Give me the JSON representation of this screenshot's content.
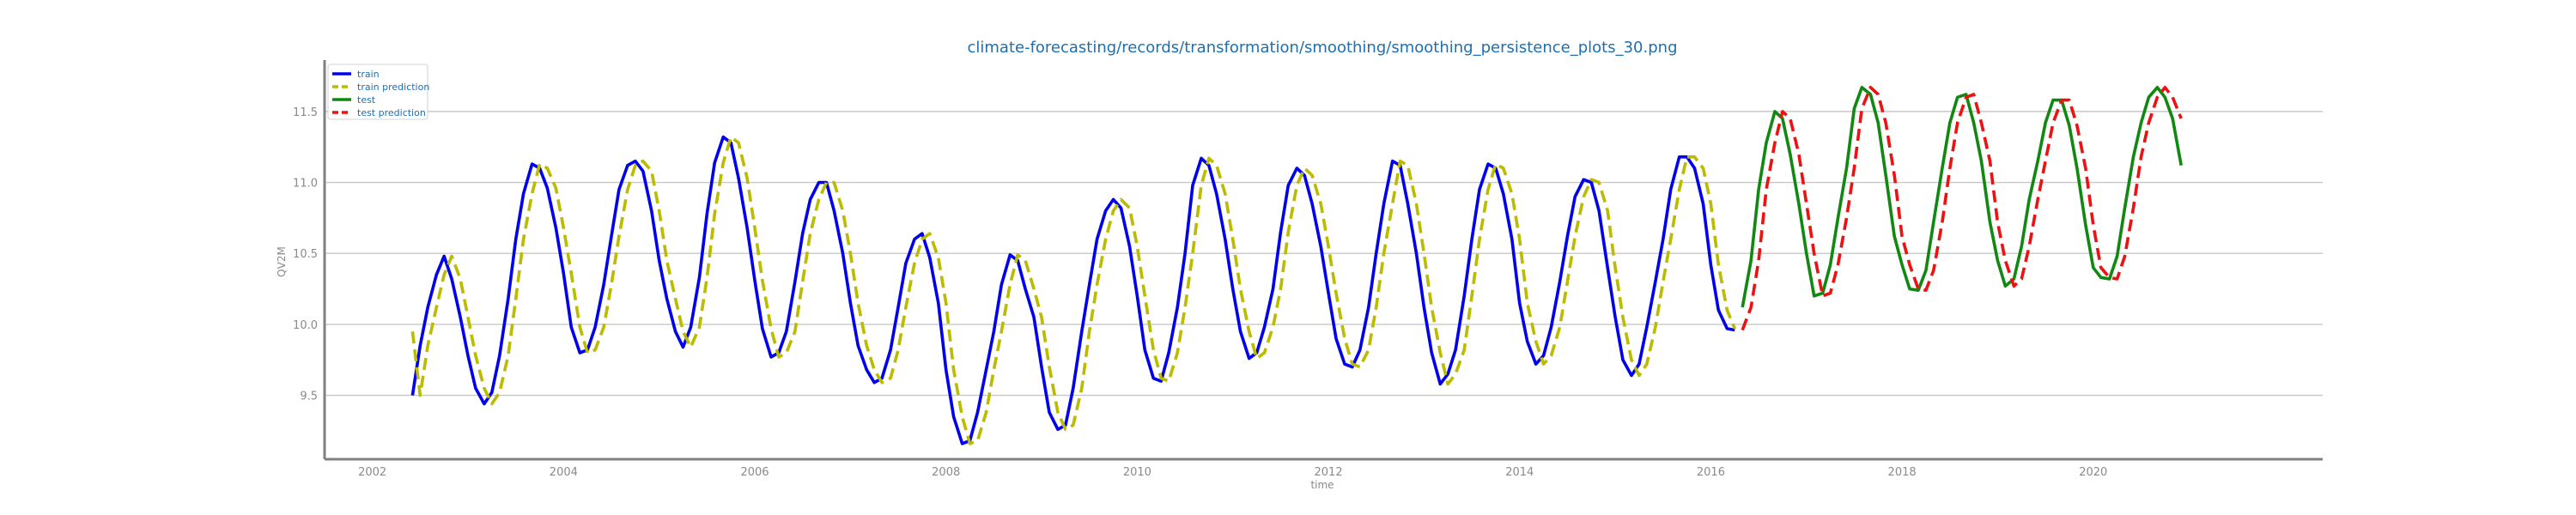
{
  "chart_data": {
    "type": "line",
    "title": "climate-forecasting/records/transformation/smoothing/smoothing_persistence_plots_30.png",
    "xlabel": "time",
    "ylabel": "QV2M",
    "xlim": [
      2001.5,
      2022.4
    ],
    "ylim": [
      9.05,
      11.85
    ],
    "xticks": [
      2002,
      2004,
      2006,
      2008,
      2010,
      2012,
      2014,
      2016,
      2018,
      2020
    ],
    "yticks": [
      9.5,
      10.0,
      10.5,
      11.0,
      11.5
    ],
    "grid": "horizontal",
    "legend_position": "top-left",
    "series": [
      {
        "name": "train",
        "color": "#0000ee",
        "style": "solid",
        "x": [
          2002.42,
          2002.5,
          2002.58,
          2002.67,
          2002.75,
          2002.83,
          2002.92,
          2003.0,
          2003.08,
          2003.17,
          2003.25,
          2003.33,
          2003.42,
          2003.5,
          2003.58,
          2003.67,
          2003.75,
          2003.83,
          2003.92,
          2004.0,
          2004.08,
          2004.17,
          2004.25,
          2004.33,
          2004.42,
          2004.5,
          2004.58,
          2004.67,
          2004.75,
          2004.83,
          2004.92,
          2005.0,
          2005.08,
          2005.17,
          2005.25,
          2005.33,
          2005.42,
          2005.5,
          2005.58,
          2005.67,
          2005.75,
          2005.83,
          2005.92,
          2006.0,
          2006.08,
          2006.17,
          2006.25,
          2006.33,
          2006.42,
          2006.5,
          2006.58,
          2006.67,
          2006.75,
          2006.83,
          2006.92,
          2007.0,
          2007.08,
          2007.17,
          2007.25,
          2007.33,
          2007.42,
          2007.5,
          2007.58,
          2007.67,
          2007.75,
          2007.83,
          2007.92,
          2008.0,
          2008.08,
          2008.17,
          2008.25,
          2008.33,
          2008.42,
          2008.5,
          2008.58,
          2008.67,
          2008.75,
          2008.83,
          2008.92,
          2009.0,
          2009.08,
          2009.17,
          2009.25,
          2009.33,
          2009.42,
          2009.5,
          2009.58,
          2009.67,
          2009.75,
          2009.83,
          2009.92,
          2010.0,
          2010.08,
          2010.17,
          2010.25,
          2010.33,
          2010.42,
          2010.5,
          2010.58,
          2010.67,
          2010.75,
          2010.83,
          2010.92,
          2011.0,
          2011.08,
          2011.17,
          2011.25,
          2011.33,
          2011.42,
          2011.5,
          2011.58,
          2011.67,
          2011.75,
          2011.83,
          2011.92,
          2012.0,
          2012.08,
          2012.17,
          2012.25,
          2012.33,
          2012.42,
          2012.5,
          2012.58,
          2012.67,
          2012.75,
          2012.83,
          2012.92,
          2013.0,
          2013.08,
          2013.17,
          2013.25,
          2013.33,
          2013.42,
          2013.5,
          2013.58,
          2013.67,
          2013.75,
          2013.83,
          2013.92,
          2014.0,
          2014.08,
          2014.17,
          2014.25,
          2014.33,
          2014.42,
          2014.5,
          2014.58,
          2014.67,
          2014.75,
          2014.83,
          2014.92,
          2015.0,
          2015.08,
          2015.17,
          2015.25,
          2015.33,
          2015.42,
          2015.5,
          2015.58,
          2015.67,
          2015.75,
          2015.83,
          2015.92,
          2016.0,
          2016.08,
          2016.17,
          2016.25
        ],
        "y": [
          9.5,
          9.85,
          10.12,
          10.35,
          10.48,
          10.32,
          10.05,
          9.78,
          9.55,
          9.44,
          9.52,
          9.78,
          10.18,
          10.6,
          10.92,
          11.13,
          11.1,
          10.96,
          10.68,
          10.36,
          9.98,
          9.8,
          9.82,
          9.98,
          10.28,
          10.62,
          10.95,
          11.12,
          11.15,
          11.08,
          10.8,
          10.45,
          10.18,
          9.95,
          9.84,
          9.98,
          10.33,
          10.78,
          11.14,
          11.32,
          11.28,
          11.03,
          10.68,
          10.31,
          9.97,
          9.77,
          9.8,
          9.95,
          10.3,
          10.64,
          10.88,
          11.0,
          11.0,
          10.8,
          10.5,
          10.15,
          9.85,
          9.68,
          9.59,
          9.62,
          9.82,
          10.12,
          10.43,
          10.6,
          10.64,
          10.47,
          10.15,
          9.68,
          9.35,
          9.16,
          9.18,
          9.38,
          9.68,
          9.95,
          10.28,
          10.49,
          10.45,
          10.25,
          10.05,
          9.7,
          9.38,
          9.26,
          9.29,
          9.55,
          9.95,
          10.28,
          10.6,
          10.8,
          10.88,
          10.82,
          10.55,
          10.2,
          9.82,
          9.62,
          9.6,
          9.8,
          10.12,
          10.5,
          10.98,
          11.17,
          11.12,
          10.92,
          10.6,
          10.25,
          9.95,
          9.76,
          9.8,
          9.98,
          10.25,
          10.65,
          10.98,
          11.1,
          11.05,
          10.85,
          10.55,
          10.22,
          9.9,
          9.72,
          9.7,
          9.82,
          10.12,
          10.5,
          10.85,
          11.15,
          11.12,
          10.85,
          10.5,
          10.12,
          9.8,
          9.58,
          9.65,
          9.82,
          10.2,
          10.6,
          10.95,
          11.13,
          11.1,
          10.92,
          10.6,
          10.15,
          9.88,
          9.72,
          9.78,
          9.98,
          10.3,
          10.62,
          10.9,
          11.02,
          11.0,
          10.8,
          10.4,
          10.05,
          9.75,
          9.64,
          9.72,
          9.98,
          10.3,
          10.6,
          10.95,
          11.18,
          11.18,
          11.1,
          10.85,
          10.42,
          10.1,
          9.97,
          9.96
        ]
      },
      {
        "name": "train prediction",
        "color": "#bbbb00",
        "style": "dashed",
        "x": [
          2002.42,
          2002.5,
          2002.58,
          2002.67,
          2002.75,
          2002.83,
          2002.92,
          2003.0,
          2003.08,
          2003.17,
          2003.25,
          2003.33,
          2003.42,
          2003.5,
          2003.58,
          2003.67,
          2003.75,
          2003.83,
          2003.92,
          2004.0,
          2004.08,
          2004.17,
          2004.25,
          2004.33,
          2004.42,
          2004.5,
          2004.58,
          2004.67,
          2004.75,
          2004.83,
          2004.92,
          2005.0,
          2005.08,
          2005.17,
          2005.25,
          2005.33,
          2005.42,
          2005.5,
          2005.58,
          2005.67,
          2005.75,
          2005.83,
          2005.92,
          2006.0,
          2006.08,
          2006.17,
          2006.25,
          2006.33,
          2006.42,
          2006.5,
          2006.58,
          2006.67,
          2006.75,
          2006.83,
          2006.92,
          2007.0,
          2007.08,
          2007.17,
          2007.25,
          2007.33,
          2007.42,
          2007.5,
          2007.58,
          2007.67,
          2007.75,
          2007.83,
          2007.92,
          2008.0,
          2008.08,
          2008.17,
          2008.25,
          2008.33,
          2008.42,
          2008.5,
          2008.58,
          2008.67,
          2008.75,
          2008.83,
          2008.92,
          2009.0,
          2009.08,
          2009.17,
          2009.25,
          2009.33,
          2009.42,
          2009.5,
          2009.58,
          2009.67,
          2009.75,
          2009.83,
          2009.92,
          2010.0,
          2010.08,
          2010.17,
          2010.25,
          2010.33,
          2010.42,
          2010.5,
          2010.58,
          2010.67,
          2010.75,
          2010.83,
          2010.92,
          2011.0,
          2011.08,
          2011.17,
          2011.25,
          2011.33,
          2011.42,
          2011.5,
          2011.58,
          2011.67,
          2011.75,
          2011.83,
          2011.92,
          2012.0,
          2012.08,
          2012.17,
          2012.25,
          2012.33,
          2012.42,
          2012.5,
          2012.58,
          2012.67,
          2012.75,
          2012.83,
          2012.92,
          2013.0,
          2013.08,
          2013.17,
          2013.25,
          2013.33,
          2013.42,
          2013.5,
          2013.58,
          2013.67,
          2013.75,
          2013.83,
          2013.92,
          2014.0,
          2014.08,
          2014.17,
          2014.25,
          2014.33,
          2014.42,
          2014.5,
          2014.58,
          2014.67,
          2014.75,
          2014.83,
          2014.92,
          2015.0,
          2015.08,
          2015.17,
          2015.25,
          2015.33,
          2015.42,
          2015.5,
          2015.58,
          2015.67,
          2015.75,
          2015.83,
          2015.92,
          2016.0,
          2016.08,
          2016.17,
          2016.25
        ],
        "y": [
          9.95,
          9.5,
          9.85,
          10.12,
          10.35,
          10.48,
          10.32,
          10.05,
          9.78,
          9.55,
          9.44,
          9.52,
          9.78,
          10.18,
          10.6,
          10.92,
          11.13,
          11.1,
          10.96,
          10.68,
          10.36,
          9.98,
          9.8,
          9.82,
          9.98,
          10.28,
          10.62,
          10.95,
          11.12,
          11.15,
          11.08,
          10.8,
          10.45,
          10.18,
          9.95,
          9.84,
          9.98,
          10.33,
          10.78,
          11.14,
          11.32,
          11.28,
          11.03,
          10.68,
          10.31,
          9.97,
          9.77,
          9.8,
          9.95,
          10.3,
          10.64,
          10.88,
          11.0,
          11.0,
          10.8,
          10.5,
          10.15,
          9.85,
          9.68,
          9.59,
          9.62,
          9.82,
          10.12,
          10.43,
          10.6,
          10.64,
          10.47,
          10.15,
          9.68,
          9.35,
          9.16,
          9.18,
          9.38,
          9.68,
          9.95,
          10.28,
          10.49,
          10.45,
          10.25,
          10.05,
          9.7,
          9.38,
          9.26,
          9.29,
          9.55,
          9.95,
          10.28,
          10.6,
          10.8,
          10.88,
          10.82,
          10.55,
          10.2,
          9.82,
          9.62,
          9.6,
          9.8,
          10.12,
          10.5,
          10.98,
          11.17,
          11.12,
          10.92,
          10.6,
          10.25,
          9.95,
          9.76,
          9.8,
          9.98,
          10.25,
          10.65,
          10.98,
          11.1,
          11.05,
          10.85,
          10.55,
          10.22,
          9.9,
          9.72,
          9.7,
          9.82,
          10.12,
          10.5,
          10.85,
          11.15,
          11.12,
          10.85,
          10.5,
          10.12,
          9.8,
          9.58,
          9.65,
          9.82,
          10.2,
          10.6,
          10.95,
          11.13,
          11.1,
          10.92,
          10.6,
          10.15,
          9.88,
          9.72,
          9.78,
          9.98,
          10.3,
          10.62,
          10.9,
          11.02,
          11.0,
          10.8,
          10.4,
          10.05,
          9.75,
          9.64,
          9.72,
          9.98,
          10.3,
          10.6,
          10.95,
          11.18,
          11.18,
          11.1,
          10.85,
          10.42,
          10.1,
          9.97
        ]
      },
      {
        "name": "test",
        "color": "#118811",
        "style": "solid",
        "x": [
          2016.33,
          2016.42,
          2016.5,
          2016.58,
          2016.67,
          2016.75,
          2016.83,
          2016.92,
          2017.0,
          2017.08,
          2017.17,
          2017.25,
          2017.33,
          2017.42,
          2017.5,
          2017.58,
          2017.67,
          2017.75,
          2017.83,
          2017.92,
          2018.0,
          2018.08,
          2018.17,
          2018.25,
          2018.33,
          2018.42,
          2018.5,
          2018.58,
          2018.67,
          2018.75,
          2018.83,
          2018.92,
          2019.0,
          2019.08,
          2019.17,
          2019.25,
          2019.33,
          2019.42,
          2019.5,
          2019.58,
          2019.67,
          2019.75,
          2019.83,
          2019.92,
          2020.0,
          2020.08,
          2020.17,
          2020.25,
          2020.33,
          2020.42,
          2020.5,
          2020.58,
          2020.67,
          2020.75,
          2020.83,
          2020.92
        ],
        "y": [
          10.12,
          10.45,
          10.95,
          11.28,
          11.5,
          11.45,
          11.2,
          10.85,
          10.5,
          10.2,
          10.22,
          10.42,
          10.75,
          11.1,
          11.52,
          11.67,
          11.62,
          11.42,
          11.05,
          10.62,
          10.42,
          10.25,
          10.24,
          10.38,
          10.72,
          11.1,
          11.42,
          11.6,
          11.62,
          11.42,
          11.15,
          10.72,
          10.45,
          10.27,
          10.32,
          10.55,
          10.88,
          11.15,
          11.42,
          11.58,
          11.58,
          11.4,
          11.1,
          10.7,
          10.4,
          10.33,
          10.32,
          10.48,
          10.82,
          11.18,
          11.42,
          11.6,
          11.67,
          11.6,
          11.45,
          11.12
        ]
      },
      {
        "name": "test prediction",
        "color": "#ee1111",
        "style": "dashed",
        "x": [
          2016.33,
          2016.42,
          2016.5,
          2016.58,
          2016.67,
          2016.75,
          2016.83,
          2016.92,
          2017.0,
          2017.08,
          2017.17,
          2017.25,
          2017.33,
          2017.42,
          2017.5,
          2017.58,
          2017.67,
          2017.75,
          2017.83,
          2017.92,
          2018.0,
          2018.08,
          2018.17,
          2018.25,
          2018.33,
          2018.42,
          2018.5,
          2018.58,
          2018.67,
          2018.75,
          2018.83,
          2018.92,
          2019.0,
          2019.08,
          2019.17,
          2019.25,
          2019.33,
          2019.42,
          2019.5,
          2019.58,
          2019.67,
          2019.75,
          2019.83,
          2019.92,
          2020.0,
          2020.08,
          2020.17,
          2020.25,
          2020.33,
          2020.42,
          2020.5,
          2020.58,
          2020.67,
          2020.75,
          2020.83,
          2020.92
        ],
        "y": [
          9.96,
          10.12,
          10.45,
          10.95,
          11.28,
          11.5,
          11.45,
          11.2,
          10.85,
          10.5,
          10.2,
          10.22,
          10.42,
          10.75,
          11.1,
          11.52,
          11.67,
          11.62,
          11.42,
          11.05,
          10.62,
          10.42,
          10.25,
          10.24,
          10.38,
          10.72,
          11.1,
          11.42,
          11.6,
          11.62,
          11.42,
          11.15,
          10.72,
          10.45,
          10.27,
          10.32,
          10.55,
          10.88,
          11.15,
          11.42,
          11.58,
          11.58,
          11.4,
          11.1,
          10.7,
          10.4,
          10.33,
          10.32,
          10.48,
          10.82,
          11.18,
          11.42,
          11.6,
          11.67,
          11.6,
          11.45
        ]
      }
    ]
  }
}
